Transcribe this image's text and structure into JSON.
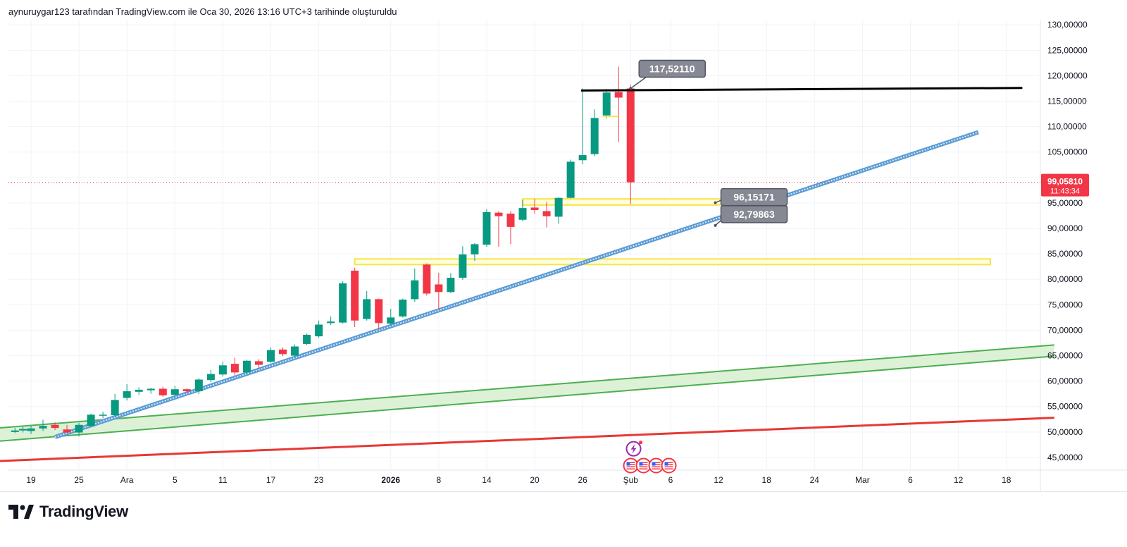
{
  "header": {
    "caption": "aynuruygar123 tarafından TradingView.com ile Oca 30, 2026 13:16 UTC+3 tarihinde oluşturuldu"
  },
  "brand": {
    "name": "TradingView",
    "logo_icon": "tradingview-logo-icon"
  },
  "chart_data": {
    "type": "candlestick",
    "title": "",
    "ylim": [
      42.5,
      131
    ],
    "y_ticks": [
      130,
      125,
      120,
      115,
      110,
      105,
      100,
      95,
      90,
      85,
      80,
      75,
      70,
      65,
      60,
      55,
      50,
      45
    ],
    "y_tick_labels": [
      "130,00000",
      "125,00000",
      "120,00000",
      "115,00000",
      "110,00000",
      "105,00000",
      "100,00000",
      "95,00000",
      "90,00000",
      "85,00000",
      "80,00000",
      "75,00000",
      "70,00000",
      "65,00000",
      "60,00000",
      "55,00000",
      "50,00000",
      "45,00000"
    ],
    "x_ticks": [
      {
        "label": "19",
        "day": 0,
        "bold": false
      },
      {
        "label": "25",
        "day": 6,
        "bold": false
      },
      {
        "label": "Ara",
        "day": 12,
        "bold": false
      },
      {
        "label": "5",
        "day": 18,
        "bold": false
      },
      {
        "label": "11",
        "day": 24,
        "bold": false
      },
      {
        "label": "17",
        "day": 30,
        "bold": false
      },
      {
        "label": "23",
        "day": 36,
        "bold": false
      },
      {
        "label": "2026",
        "day": 45,
        "bold": true
      },
      {
        "label": "8",
        "day": 51,
        "bold": false
      },
      {
        "label": "14",
        "day": 57,
        "bold": false
      },
      {
        "label": "20",
        "day": 63,
        "bold": false
      },
      {
        "label": "26",
        "day": 69,
        "bold": false
      },
      {
        "label": "Şub",
        "day": 75,
        "bold": false
      },
      {
        "label": "6",
        "day": 80,
        "bold": false
      },
      {
        "label": "12",
        "day": 86,
        "bold": false
      },
      {
        "label": "18",
        "day": 92,
        "bold": false
      },
      {
        "label": "24",
        "day": 98,
        "bold": false
      },
      {
        "label": "Mar",
        "day": 104,
        "bold": false
      },
      {
        "label": "6",
        "day": 110,
        "bold": false
      },
      {
        "label": "12",
        "day": 116,
        "bold": false
      },
      {
        "label": "18",
        "day": 122,
        "bold": false
      }
    ],
    "candles": [
      {
        "day": -2,
        "o": 50.0,
        "h": 50.8,
        "l": 49.8,
        "c": 50.3
      },
      {
        "day": -1,
        "o": 50.3,
        "h": 51.0,
        "l": 49.9,
        "c": 50.6
      },
      {
        "day": 0,
        "o": 50.2,
        "h": 51.2,
        "l": 49.6,
        "c": 50.7
      },
      {
        "day": 1.5,
        "o": 50.7,
        "h": 52.4,
        "l": 50.2,
        "c": 51.2
      },
      {
        "day": 3,
        "o": 51.4,
        "h": 51.9,
        "l": 50.4,
        "c": 50.8
      },
      {
        "day": 4.5,
        "o": 50.5,
        "h": 51.4,
        "l": 49.8,
        "c": 49.9
      },
      {
        "day": 6,
        "o": 49.9,
        "h": 51.8,
        "l": 49.1,
        "c": 51.4
      },
      {
        "day": 7.5,
        "o": 51.2,
        "h": 53.6,
        "l": 51.0,
        "c": 53.4
      },
      {
        "day": 9,
        "o": 53.3,
        "h": 54.0,
        "l": 52.7,
        "c": 53.4
      },
      {
        "day": 10.5,
        "o": 53.3,
        "h": 57.5,
        "l": 53.0,
        "c": 56.3
      },
      {
        "day": 12,
        "o": 56.7,
        "h": 59.4,
        "l": 56.2,
        "c": 58.0
      },
      {
        "day": 13.5,
        "o": 57.9,
        "h": 58.8,
        "l": 57.3,
        "c": 58.3
      },
      {
        "day": 15,
        "o": 58.2,
        "h": 58.7,
        "l": 57.5,
        "c": 58.5
      },
      {
        "day": 16.5,
        "o": 58.5,
        "h": 58.9,
        "l": 56.9,
        "c": 57.2
      },
      {
        "day": 18,
        "o": 57.3,
        "h": 59.1,
        "l": 56.7,
        "c": 58.4
      },
      {
        "day": 19.5,
        "o": 58.4,
        "h": 58.6,
        "l": 57.6,
        "c": 58.0
      },
      {
        "day": 21,
        "o": 58.0,
        "h": 60.6,
        "l": 57.4,
        "c": 60.3
      },
      {
        "day": 22.5,
        "o": 60.2,
        "h": 62.2,
        "l": 59.8,
        "c": 61.4
      },
      {
        "day": 24,
        "o": 61.3,
        "h": 63.8,
        "l": 60.9,
        "c": 63.1
      },
      {
        "day": 25.5,
        "o": 63.4,
        "h": 64.6,
        "l": 61.1,
        "c": 61.7
      },
      {
        "day": 27,
        "o": 61.7,
        "h": 64.2,
        "l": 61.3,
        "c": 64.0
      },
      {
        "day": 28.5,
        "o": 63.9,
        "h": 64.3,
        "l": 62.4,
        "c": 63.2
      },
      {
        "day": 30,
        "o": 63.8,
        "h": 66.6,
        "l": 63.6,
        "c": 66.1
      },
      {
        "day": 31.5,
        "o": 66.2,
        "h": 66.6,
        "l": 64.9,
        "c": 65.3
      },
      {
        "day": 33,
        "o": 65.0,
        "h": 67.2,
        "l": 64.9,
        "c": 66.8
      },
      {
        "day": 34.5,
        "o": 67.3,
        "h": 69.3,
        "l": 67.1,
        "c": 69.1
      },
      {
        "day": 36,
        "o": 68.8,
        "h": 71.9,
        "l": 68.5,
        "c": 71.1
      },
      {
        "day": 37.5,
        "o": 71.4,
        "h": 72.7,
        "l": 71.0,
        "c": 71.7
      },
      {
        "day": 39,
        "o": 71.5,
        "h": 79.6,
        "l": 71.3,
        "c": 79.2
      },
      {
        "day": 40.5,
        "o": 81.7,
        "h": 82.3,
        "l": 70.6,
        "c": 71.9
      },
      {
        "day": 42,
        "o": 72.2,
        "h": 77.7,
        "l": 71.9,
        "c": 76.1
      },
      {
        "day": 43.5,
        "o": 76.1,
        "h": 76.2,
        "l": 70.1,
        "c": 71.4
      },
      {
        "day": 45,
        "o": 71.3,
        "h": 74.2,
        "l": 70.9,
        "c": 72.5
      },
      {
        "day": 46.5,
        "o": 72.7,
        "h": 76.2,
        "l": 72.5,
        "c": 76.0
      },
      {
        "day": 48,
        "o": 76.1,
        "h": 82.1,
        "l": 75.6,
        "c": 79.8
      },
      {
        "day": 49.5,
        "o": 82.9,
        "h": 83.1,
        "l": 76.8,
        "c": 77.2
      },
      {
        "day": 51,
        "o": 79.0,
        "h": 81.3,
        "l": 74.0,
        "c": 77.5
      },
      {
        "day": 52.5,
        "o": 77.5,
        "h": 81.2,
        "l": 77.3,
        "c": 80.3
      },
      {
        "day": 54,
        "o": 80.3,
        "h": 86.5,
        "l": 79.9,
        "c": 84.9
      },
      {
        "day": 55.5,
        "o": 84.9,
        "h": 87.1,
        "l": 83.6,
        "c": 86.9
      },
      {
        "day": 57,
        "o": 86.8,
        "h": 93.8,
        "l": 86.4,
        "c": 93.2
      },
      {
        "day": 58.5,
        "o": 93.1,
        "h": 93.4,
        "l": 86.4,
        "c": 92.4
      },
      {
        "day": 60,
        "o": 92.9,
        "h": 93.4,
        "l": 86.9,
        "c": 90.3
      },
      {
        "day": 61.5,
        "o": 91.7,
        "h": 95.6,
        "l": 91.4,
        "c": 94.0
      },
      {
        "day": 63,
        "o": 94.1,
        "h": 95.8,
        "l": 92.9,
        "c": 93.6
      },
      {
        "day": 64.5,
        "o": 93.4,
        "h": 95.2,
        "l": 90.2,
        "c": 92.4
      },
      {
        "day": 66,
        "o": 92.3,
        "h": 96.1,
        "l": 90.9,
        "c": 96.0
      },
      {
        "day": 67.5,
        "o": 96.0,
        "h": 103.5,
        "l": 95.9,
        "c": 103.1
      },
      {
        "day": 69,
        "o": 103.4,
        "h": 117.5,
        "l": 102.6,
        "c": 104.4
      },
      {
        "day": 70.5,
        "o": 104.6,
        "h": 113.4,
        "l": 104.2,
        "c": 111.7
      },
      {
        "day": 72,
        "o": 112.2,
        "h": 117.4,
        "l": 111.6,
        "c": 116.7
      },
      {
        "day": 73.5,
        "o": 116.8,
        "h": 121.8,
        "l": 107.0,
        "c": 115.7
      },
      {
        "day": 75,
        "o": 117.5,
        "h": 118.2,
        "l": 94.8,
        "c": 99.06
      }
    ],
    "annotations": {
      "price_labels": [
        {
          "text": "117,52110",
          "day": 75,
          "value": 117.5,
          "anchor_day": 75,
          "anchor_value": 117.5
        },
        {
          "text": "96,15171",
          "day": 85.6,
          "value": 96.15,
          "anchor_day": 85.6,
          "anchor_value": 96.15
        },
        {
          "text": "92,79863",
          "day": 85.6,
          "value": 92.8,
          "anchor_day": 85.6,
          "anchor_value": 92.8
        }
      ],
      "current_price": {
        "value": 99.06,
        "label": "99,05810",
        "countdown": "11:43:34",
        "color": "#f23645"
      },
      "horizontal_ray": {
        "color": "#000000",
        "value_start": 117.1,
        "value_end": 117.6,
        "day_start": 68.8,
        "day_end": 124
      },
      "trendline": {
        "color": "#5b9bd5",
        "p1": {
          "day": 3,
          "value": 49.0
        },
        "p2": {
          "day": 118.5,
          "value": 108.9
        }
      },
      "zones": [
        {
          "color": "#f5e642",
          "day_start": 61.5,
          "day_end": 91,
          "low": 94.6,
          "high": 95.8
        },
        {
          "color": "#f5e642",
          "day_start": 40.5,
          "day_end": 120,
          "low": 82.9,
          "high": 84.0
        }
      ],
      "small_segment": {
        "color": "#f5e642",
        "day_start": 71.5,
        "day_end": 73.5,
        "value": 112.0
      },
      "green_channel": {
        "color": "#4caf50",
        "fill": "#d9f0d3",
        "upper": {
          "day_start": -4,
          "value_start": 50.8,
          "day_end": 128,
          "value_end": 67.1
        },
        "lower": {
          "day_start": -4,
          "value_start": 48.2,
          "day_end": 128,
          "value_end": 64.9
        }
      },
      "red_line": {
        "color": "#e53935",
        "day_start": -4,
        "value_start": 44.3,
        "day_end": 128,
        "value_end": 52.8
      },
      "event_icons": {
        "day": 75.2,
        "lightning_icon": "lightning-icon",
        "flag_icons": [
          "us-flag-icon",
          "us-flag-icon",
          "us-flag-icon",
          "us-flag-icon"
        ]
      }
    },
    "colors": {
      "up": "#089981",
      "down": "#f23645",
      "grid": "#f0f3fa",
      "axis_text": "#131722",
      "label_bg": "#868993"
    }
  }
}
